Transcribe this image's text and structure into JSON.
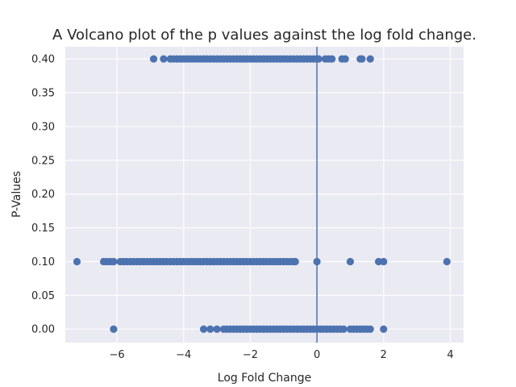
{
  "chart_data": {
    "type": "scatter",
    "title": "A Volcano plot of the p values against the log fold change.",
    "xlabel": "Log Fold Change",
    "ylabel": "P-Values",
    "xlim": [
      -7.55,
      4.4
    ],
    "ylim": [
      -0.02,
      0.418
    ],
    "x_ticks": [
      -6,
      -4,
      -2,
      0,
      2,
      4
    ],
    "x_tick_labels": [
      "−6",
      "−4",
      "−2",
      "0",
      "2",
      "4"
    ],
    "y_ticks": [
      0.0,
      0.05,
      0.1,
      0.15,
      0.2,
      0.25,
      0.3,
      0.35,
      0.4
    ],
    "y_tick_labels": [
      "0.00",
      "0.05",
      "0.10",
      "0.15",
      "0.20",
      "0.25",
      "0.30",
      "0.35",
      "0.40"
    ],
    "grid": true,
    "vertical_line_x": 0,
    "colors": {
      "points": "#4c72b0",
      "background": "#eaeaf2",
      "grid": "#ffffff"
    },
    "series": [
      {
        "values": [
          {
            "x": -4.9,
            "y": 0.4
          },
          {
            "x": -4.6,
            "y": 0.4
          },
          {
            "x": -4.4,
            "y": 0.4
          },
          {
            "x": -4.3,
            "y": 0.4
          },
          {
            "x": -4.2,
            "y": 0.4
          },
          {
            "x": -4.1,
            "y": 0.4
          },
          {
            "x": -4.0,
            "y": 0.4
          },
          {
            "x": -3.9,
            "y": 0.4
          },
          {
            "x": -3.8,
            "y": 0.4
          },
          {
            "x": -3.7,
            "y": 0.4
          },
          {
            "x": -3.6,
            "y": 0.4
          },
          {
            "x": -3.5,
            "y": 0.4
          },
          {
            "x": -3.4,
            "y": 0.4
          },
          {
            "x": -3.3,
            "y": 0.4
          },
          {
            "x": -3.2,
            "y": 0.4
          },
          {
            "x": -3.1,
            "y": 0.4
          },
          {
            "x": -3.0,
            "y": 0.4
          },
          {
            "x": -2.9,
            "y": 0.4
          },
          {
            "x": -2.8,
            "y": 0.4
          },
          {
            "x": -2.7,
            "y": 0.4
          },
          {
            "x": -2.6,
            "y": 0.4
          },
          {
            "x": -2.5,
            "y": 0.4
          },
          {
            "x": -2.4,
            "y": 0.4
          },
          {
            "x": -2.3,
            "y": 0.4
          },
          {
            "x": -2.2,
            "y": 0.4
          },
          {
            "x": -2.1,
            "y": 0.4
          },
          {
            "x": -2.0,
            "y": 0.4
          },
          {
            "x": -1.9,
            "y": 0.4
          },
          {
            "x": -1.8,
            "y": 0.4
          },
          {
            "x": -1.7,
            "y": 0.4
          },
          {
            "x": -1.6,
            "y": 0.4
          },
          {
            "x": -1.5,
            "y": 0.4
          },
          {
            "x": -1.4,
            "y": 0.4
          },
          {
            "x": -1.3,
            "y": 0.4
          },
          {
            "x": -1.2,
            "y": 0.4
          },
          {
            "x": -1.1,
            "y": 0.4
          },
          {
            "x": -1.0,
            "y": 0.4
          },
          {
            "x": -0.9,
            "y": 0.4
          },
          {
            "x": -0.8,
            "y": 0.4
          },
          {
            "x": -0.7,
            "y": 0.4
          },
          {
            "x": -0.6,
            "y": 0.4
          },
          {
            "x": -0.5,
            "y": 0.4
          },
          {
            "x": -0.4,
            "y": 0.4
          },
          {
            "x": -0.3,
            "y": 0.4
          },
          {
            "x": -0.2,
            "y": 0.4
          },
          {
            "x": -0.1,
            "y": 0.4
          },
          {
            "x": 0.0,
            "y": 0.4
          },
          {
            "x": 0.05,
            "y": 0.4
          },
          {
            "x": 0.25,
            "y": 0.4
          },
          {
            "x": 0.35,
            "y": 0.4
          },
          {
            "x": 0.45,
            "y": 0.4
          },
          {
            "x": 0.75,
            "y": 0.4
          },
          {
            "x": 0.85,
            "y": 0.4
          },
          {
            "x": 1.3,
            "y": 0.4
          },
          {
            "x": 1.35,
            "y": 0.4
          },
          {
            "x": 1.6,
            "y": 0.4
          },
          {
            "x": -7.2,
            "y": 0.1
          },
          {
            "x": -6.4,
            "y": 0.1
          },
          {
            "x": -6.3,
            "y": 0.1
          },
          {
            "x": -6.2,
            "y": 0.1
          },
          {
            "x": -6.1,
            "y": 0.1
          },
          {
            "x": -5.9,
            "y": 0.1
          },
          {
            "x": -5.8,
            "y": 0.1
          },
          {
            "x": -5.7,
            "y": 0.1
          },
          {
            "x": -5.6,
            "y": 0.1
          },
          {
            "x": -5.5,
            "y": 0.1
          },
          {
            "x": -5.4,
            "y": 0.1
          },
          {
            "x": -5.3,
            "y": 0.1
          },
          {
            "x": -5.2,
            "y": 0.1
          },
          {
            "x": -5.1,
            "y": 0.1
          },
          {
            "x": -5.0,
            "y": 0.1
          },
          {
            "x": -4.9,
            "y": 0.1
          },
          {
            "x": -4.8,
            "y": 0.1
          },
          {
            "x": -4.7,
            "y": 0.1
          },
          {
            "x": -4.6,
            "y": 0.1
          },
          {
            "x": -4.5,
            "y": 0.1
          },
          {
            "x": -4.4,
            "y": 0.1
          },
          {
            "x": -4.3,
            "y": 0.1
          },
          {
            "x": -4.2,
            "y": 0.1
          },
          {
            "x": -4.1,
            "y": 0.1
          },
          {
            "x": -4.0,
            "y": 0.1
          },
          {
            "x": -3.9,
            "y": 0.1
          },
          {
            "x": -3.8,
            "y": 0.1
          },
          {
            "x": -3.7,
            "y": 0.1
          },
          {
            "x": -3.6,
            "y": 0.1
          },
          {
            "x": -3.5,
            "y": 0.1
          },
          {
            "x": -3.4,
            "y": 0.1
          },
          {
            "x": -3.3,
            "y": 0.1
          },
          {
            "x": -3.2,
            "y": 0.1
          },
          {
            "x": -3.1,
            "y": 0.1
          },
          {
            "x": -3.0,
            "y": 0.1
          },
          {
            "x": -2.9,
            "y": 0.1
          },
          {
            "x": -2.8,
            "y": 0.1
          },
          {
            "x": -2.7,
            "y": 0.1
          },
          {
            "x": -2.6,
            "y": 0.1
          },
          {
            "x": -2.5,
            "y": 0.1
          },
          {
            "x": -2.4,
            "y": 0.1
          },
          {
            "x": -2.3,
            "y": 0.1
          },
          {
            "x": -2.2,
            "y": 0.1
          },
          {
            "x": -2.1,
            "y": 0.1
          },
          {
            "x": -2.0,
            "y": 0.1
          },
          {
            "x": -1.9,
            "y": 0.1
          },
          {
            "x": -1.8,
            "y": 0.1
          },
          {
            "x": -1.7,
            "y": 0.1
          },
          {
            "x": -1.6,
            "y": 0.1
          },
          {
            "x": -1.5,
            "y": 0.1
          },
          {
            "x": -1.4,
            "y": 0.1
          },
          {
            "x": -1.3,
            "y": 0.1
          },
          {
            "x": -1.2,
            "y": 0.1
          },
          {
            "x": -1.1,
            "y": 0.1
          },
          {
            "x": -1.0,
            "y": 0.1
          },
          {
            "x": -0.9,
            "y": 0.1
          },
          {
            "x": -0.8,
            "y": 0.1
          },
          {
            "x": -0.7,
            "y": 0.1
          },
          {
            "x": -0.65,
            "y": 0.1
          },
          {
            "x": 0.0,
            "y": 0.1
          },
          {
            "x": 1.0,
            "y": 0.1
          },
          {
            "x": 1.85,
            "y": 0.1
          },
          {
            "x": 2.0,
            "y": 0.1
          },
          {
            "x": 3.9,
            "y": 0.1
          },
          {
            "x": -6.1,
            "y": 0.0
          },
          {
            "x": -3.4,
            "y": 0.0
          },
          {
            "x": -3.2,
            "y": 0.0
          },
          {
            "x": -3.0,
            "y": 0.0
          },
          {
            "x": -2.8,
            "y": 0.0
          },
          {
            "x": -2.7,
            "y": 0.0
          },
          {
            "x": -2.6,
            "y": 0.0
          },
          {
            "x": -2.5,
            "y": 0.0
          },
          {
            "x": -2.4,
            "y": 0.0
          },
          {
            "x": -2.3,
            "y": 0.0
          },
          {
            "x": -2.2,
            "y": 0.0
          },
          {
            "x": -2.1,
            "y": 0.0
          },
          {
            "x": -2.0,
            "y": 0.0
          },
          {
            "x": -1.9,
            "y": 0.0
          },
          {
            "x": -1.8,
            "y": 0.0
          },
          {
            "x": -1.7,
            "y": 0.0
          },
          {
            "x": -1.6,
            "y": 0.0
          },
          {
            "x": -1.5,
            "y": 0.0
          },
          {
            "x": -1.4,
            "y": 0.0
          },
          {
            "x": -1.3,
            "y": 0.0
          },
          {
            "x": -1.2,
            "y": 0.0
          },
          {
            "x": -1.1,
            "y": 0.0
          },
          {
            "x": -1.0,
            "y": 0.0
          },
          {
            "x": -0.9,
            "y": 0.0
          },
          {
            "x": -0.8,
            "y": 0.0
          },
          {
            "x": -0.7,
            "y": 0.0
          },
          {
            "x": -0.6,
            "y": 0.0
          },
          {
            "x": -0.5,
            "y": 0.0
          },
          {
            "x": -0.4,
            "y": 0.0
          },
          {
            "x": -0.3,
            "y": 0.0
          },
          {
            "x": -0.2,
            "y": 0.0
          },
          {
            "x": -0.1,
            "y": 0.0
          },
          {
            "x": 0.0,
            "y": 0.0
          },
          {
            "x": 0.1,
            "y": 0.0
          },
          {
            "x": 0.2,
            "y": 0.0
          },
          {
            "x": 0.3,
            "y": 0.0
          },
          {
            "x": 0.4,
            "y": 0.0
          },
          {
            "x": 0.5,
            "y": 0.0
          },
          {
            "x": 0.6,
            "y": 0.0
          },
          {
            "x": 0.7,
            "y": 0.0
          },
          {
            "x": 0.8,
            "y": 0.0
          },
          {
            "x": 1.0,
            "y": 0.0
          },
          {
            "x": 1.1,
            "y": 0.0
          },
          {
            "x": 1.2,
            "y": 0.0
          },
          {
            "x": 1.3,
            "y": 0.0
          },
          {
            "x": 1.4,
            "y": 0.0
          },
          {
            "x": 1.5,
            "y": 0.0
          },
          {
            "x": 1.6,
            "y": 0.0
          },
          {
            "x": 2.0,
            "y": 0.0
          }
        ]
      }
    ]
  }
}
